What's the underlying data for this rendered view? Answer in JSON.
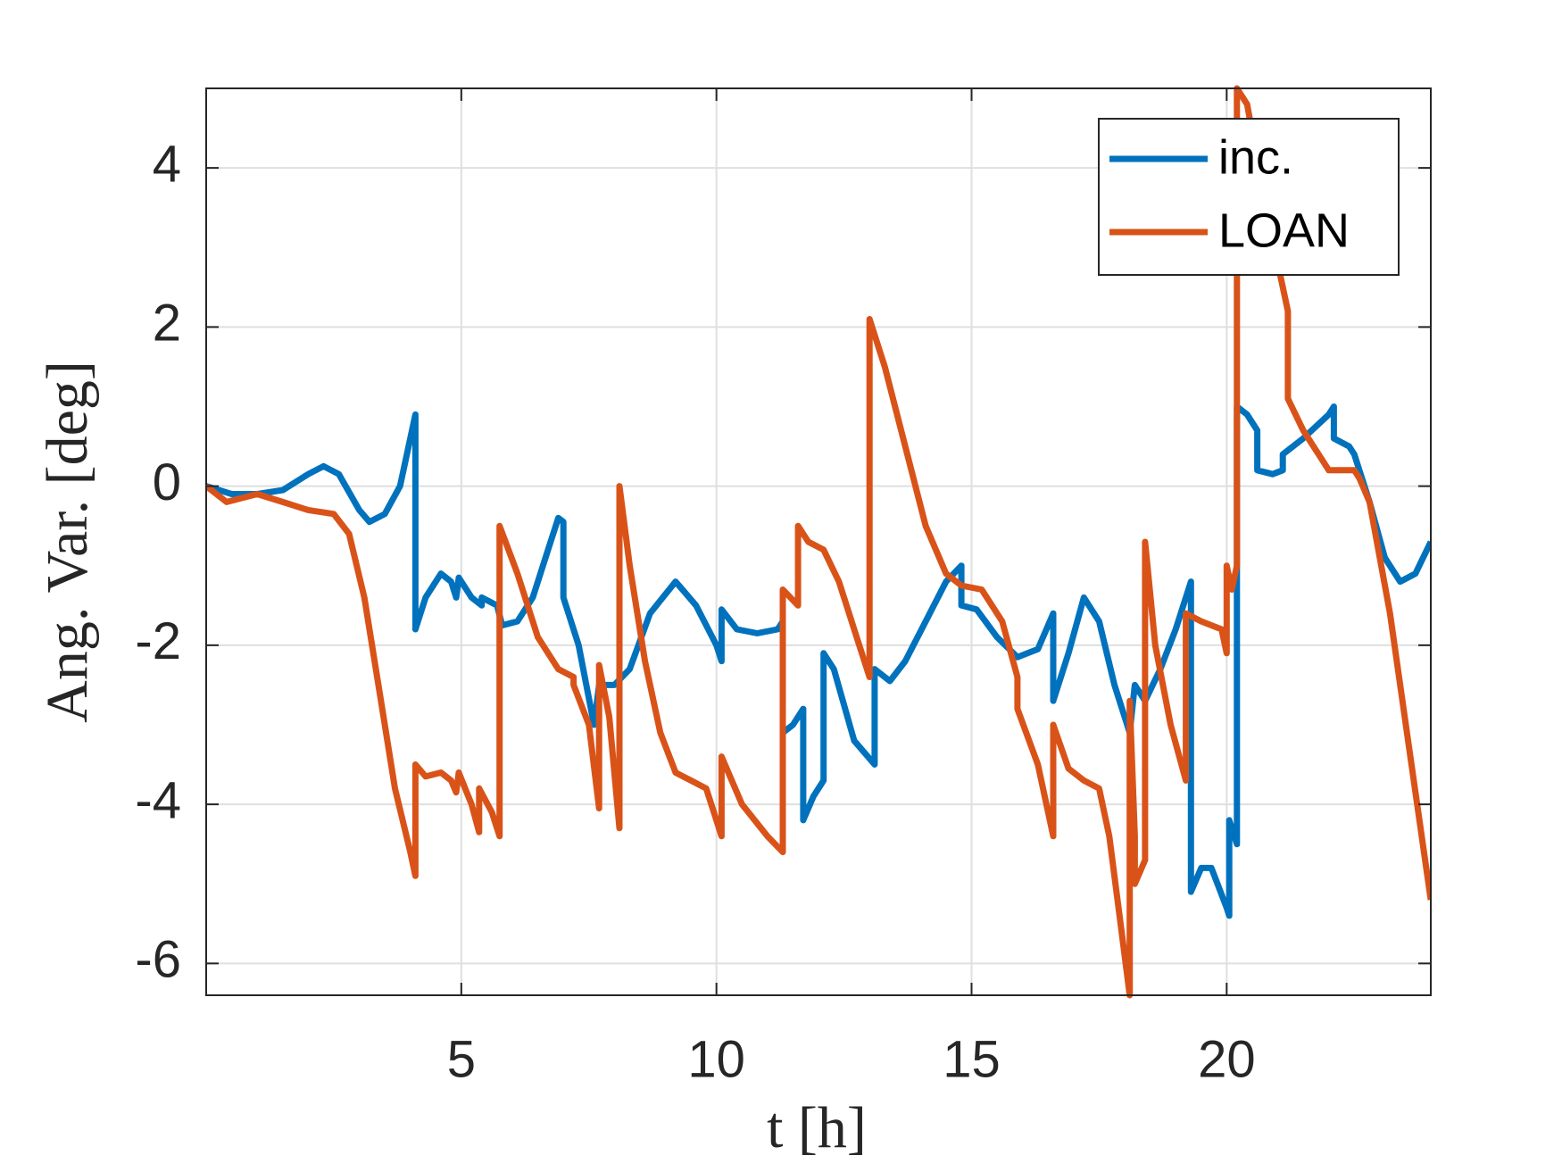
{
  "chart_data": {
    "type": "line",
    "xlabel": "t [h]",
    "ylabel": "Ang. Var. [deg]",
    "xlim": [
      0,
      24
    ],
    "ylim": [
      -6.4,
      5
    ],
    "xticks": [
      5,
      10,
      15,
      20
    ],
    "yticks": [
      -6,
      -4,
      -2,
      0,
      2,
      4
    ],
    "grid": true,
    "legend_position": "upper right",
    "series": [
      {
        "name": "inc.",
        "color": "#0072bd",
        "x": [
          0,
          0.5,
          1,
          1.5,
          2,
          2.3,
          2.6,
          3,
          3.2,
          3.5,
          3.8,
          4.1,
          4.1,
          4.3,
          4.6,
          4.8,
          4.9,
          4.95,
          5.2,
          5.4,
          5.4,
          5.7,
          5.8,
          6.1,
          6.4,
          6.7,
          6.9,
          7.0,
          7.0,
          7.3,
          7.6,
          7.7,
          8.0,
          8.3,
          8.7,
          9.2,
          9.6,
          10.0,
          10.1,
          10.1,
          10.4,
          10.8,
          11.2,
          11.3,
          11.3,
          11.5,
          11.7,
          11.7,
          11.9,
          12.0,
          12.1,
          12.1,
          12.3,
          12.7,
          13.1,
          13.1,
          13.4,
          13.7,
          14.1,
          14.5,
          14.8,
          14.8,
          15.1,
          15.5,
          15.9,
          16.3,
          16.6,
          16.6,
          16.9,
          17.2,
          17.5,
          17.8,
          18.1,
          18.2,
          18.4,
          18.7,
          19.0,
          19.3,
          19.3,
          19.5,
          19.7,
          20.0,
          20.05,
          20.05,
          20.2,
          20.2,
          20.2,
          20.4,
          20.6,
          20.6,
          20.9,
          21.1,
          21.1,
          21.5,
          22.0,
          22.1,
          22.1,
          22.4,
          22.5,
          22.8,
          23.1,
          23.4,
          23.7,
          24
        ],
        "values": [
          0,
          -0.1,
          -0.1,
          -0.05,
          0.15,
          0.25,
          0.15,
          -0.3,
          -0.45,
          -0.35,
          0,
          0.9,
          -1.8,
          -1.4,
          -1.1,
          -1.2,
          -1.4,
          -1.15,
          -1.4,
          -1.5,
          -1.4,
          -1.5,
          -1.75,
          -1.7,
          -1.4,
          -0.8,
          -0.4,
          -0.45,
          -1.4,
          -2.0,
          -3.0,
          -2.5,
          -2.5,
          -2.3,
          -1.6,
          -1.2,
          -1.5,
          -2.0,
          -2.2,
          -1.55,
          -1.8,
          -1.85,
          -1.8,
          -1.7,
          -3.1,
          -3.0,
          -2.8,
          -4.2,
          -3.9,
          -3.8,
          -3.7,
          -2.1,
          -2.3,
          -3.2,
          -3.5,
          -2.3,
          -2.45,
          -2.2,
          -1.7,
          -1.2,
          -1.0,
          -1.5,
          -1.55,
          -1.9,
          -2.15,
          -2.05,
          -1.6,
          -2.7,
          -2.1,
          -1.4,
          -1.7,
          -2.5,
          -3.1,
          -2.5,
          -2.7,
          -2.3,
          -1.8,
          -1.2,
          -5.1,
          -4.8,
          -4.8,
          -5.3,
          -5.4,
          -4.2,
          -4.5,
          -3.4,
          1.0,
          0.9,
          0.7,
          0.2,
          0.15,
          0.2,
          0.4,
          0.6,
          0.9,
          1.0,
          0.6,
          0.5,
          0.4,
          -0.2,
          -0.9,
          -1.2,
          -1.1,
          -0.7
        ]
      },
      {
        "name": "LOAN",
        "color": "#d95319",
        "x": [
          0,
          0.4,
          1,
          1.5,
          2,
          2.5,
          2.8,
          3.1,
          3.4,
          3.7,
          4.0,
          4.1,
          4.1,
          4.3,
          4.6,
          4.8,
          4.9,
          4.95,
          5.2,
          5.35,
          5.35,
          5.6,
          5.75,
          5.75,
          6.1,
          6.5,
          6.9,
          7.2,
          7.2,
          7.5,
          7.7,
          7.7,
          7.9,
          8.1,
          8.1,
          8.3,
          8.6,
          8.9,
          9.2,
          9.5,
          9.8,
          10.1,
          10.1,
          10.5,
          11.0,
          11.3,
          11.3,
          11.6,
          11.6,
          11.8,
          12.1,
          12.4,
          12.8,
          13.0,
          13.0,
          13.3,
          13.7,
          14.1,
          14.5,
          14.8,
          15.2,
          15.6,
          15.9,
          15.9,
          16.3,
          16.6,
          16.6,
          16.9,
          17.2,
          17.5,
          17.7,
          17.9,
          18.1,
          18.1,
          18.2,
          18.2,
          18.4,
          18.4,
          18.6,
          18.9,
          19.2,
          19.2,
          19.5,
          19.9,
          20.0,
          20.0,
          20.1,
          20.2,
          20.2,
          20.4,
          20.8,
          21.2,
          21.2,
          21.5,
          21.9,
          22.0,
          22.5,
          22.6,
          22.8,
          23.2,
          23.6,
          24
        ],
        "values": [
          0,
          -0.2,
          -0.1,
          -0.2,
          -0.3,
          -0.35,
          -0.6,
          -1.4,
          -2.6,
          -3.8,
          -4.6,
          -4.9,
          -3.5,
          -3.65,
          -3.6,
          -3.7,
          -3.85,
          -3.6,
          -4,
          -4.35,
          -3.8,
          -4.1,
          -4.4,
          -0.5,
          -1.1,
          -1.9,
          -2.3,
          -2.4,
          -2.5,
          -3.0,
          -4.05,
          -2.25,
          -2.9,
          -4.3,
          0,
          -1.0,
          -2.2,
          -3.1,
          -3.6,
          -3.7,
          -3.8,
          -4.4,
          -3.4,
          -4.0,
          -4.4,
          -4.6,
          -1.3,
          -1.5,
          -0.5,
          -0.7,
          -0.8,
          -1.2,
          -2.0,
          -2.4,
          2.1,
          1.5,
          0.5,
          -0.5,
          -1.1,
          -1.25,
          -1.3,
          -1.7,
          -2.4,
          -2.8,
          -3.5,
          -4.4,
          -3.0,
          -3.55,
          -3.7,
          -3.8,
          -4.4,
          -5.4,
          -6.4,
          -2.7,
          -4.4,
          -5.0,
          -4.7,
          -0.7,
          -2.0,
          -3.0,
          -3.7,
          -1.6,
          -1.7,
          -1.8,
          -2.1,
          -1.0,
          -1.3,
          -1.0,
          5.0,
          4.8,
          3.4,
          2.2,
          1.1,
          0.7,
          0.3,
          0.2,
          0.2,
          0.1,
          -0.2,
          -1.6,
          -3.4,
          -5.2
        ]
      }
    ]
  }
}
